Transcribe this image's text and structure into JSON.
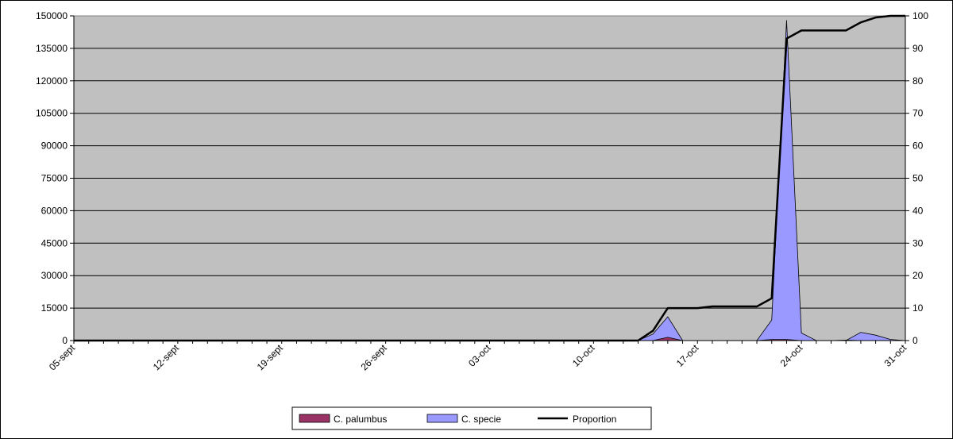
{
  "chart_data": {
    "type": "area",
    "title": "",
    "xlabel": "",
    "ylabel": "",
    "y2label": "",
    "x_ticks": [
      "05-sept",
      "12-sept",
      "19-sept",
      "26-sept",
      "03-oct",
      "10-oct",
      "17-oct",
      "24-oct",
      "31-oct"
    ],
    "x_tick_days": [
      0,
      7,
      14,
      21,
      28,
      35,
      42,
      49,
      56
    ],
    "x_days_range": [
      0,
      56
    ],
    "ylim": [
      0,
      150000
    ],
    "y_ticks": [
      0,
      15000,
      30000,
      45000,
      60000,
      75000,
      90000,
      105000,
      120000,
      135000,
      150000
    ],
    "y2lim": [
      0,
      100
    ],
    "y2_ticks": [
      0,
      10,
      20,
      30,
      40,
      50,
      60,
      70,
      80,
      90,
      100
    ],
    "grid": true,
    "plot_background": "#c0c0c0",
    "legend_position": "bottom",
    "series": [
      {
        "name": "C. palumbus",
        "kind": "area",
        "axis": "left",
        "color": "#993366",
        "x": [
          0,
          38,
          39,
          40,
          41,
          42,
          43,
          44,
          45,
          46,
          47,
          48,
          49,
          50,
          51,
          52,
          53,
          54,
          55,
          56
        ],
        "values": [
          0,
          0,
          0,
          1500,
          0,
          0,
          0,
          0,
          0,
          0,
          500,
          500,
          0,
          0,
          0,
          200,
          0,
          0,
          0,
          0
        ]
      },
      {
        "name": "C. specie",
        "kind": "area",
        "axis": "left",
        "color": "#9999ff",
        "x": [
          0,
          38,
          39,
          40,
          41,
          42,
          43,
          44,
          45,
          46,
          47,
          48,
          49,
          50,
          51,
          52,
          53,
          54,
          55,
          56
        ],
        "values": [
          0,
          0,
          3000,
          11000,
          0,
          0,
          0,
          0,
          0,
          0,
          9500,
          148000,
          3500,
          0,
          0,
          0,
          3800,
          2500,
          500,
          0
        ]
      },
      {
        "name": "Proportion",
        "kind": "line",
        "axis": "right",
        "color": "#000000",
        "x": [
          0,
          38,
          39,
          40,
          41,
          42,
          43,
          44,
          45,
          46,
          47,
          48,
          49,
          50,
          51,
          52,
          53,
          54,
          55,
          56
        ],
        "values": [
          0,
          0,
          3,
          10,
          10,
          10,
          10.5,
          10.5,
          10.5,
          10.5,
          13,
          93,
          95.5,
          95.5,
          95.5,
          95.5,
          98,
          99.5,
          100,
          100
        ]
      }
    ]
  }
}
